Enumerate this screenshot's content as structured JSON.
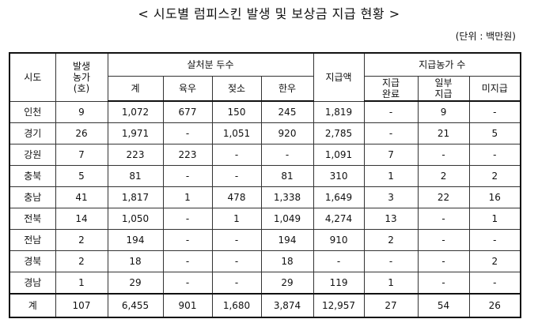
{
  "title": "< 시도별 럼피스킨 발생 및 보상금 지급 현황 >",
  "unit": "(단위 : 백만원)",
  "headers": {
    "region": "시도",
    "farms": "발생\n농가\n(호)",
    "culled_group": "살처분 두수",
    "culled_total": "계",
    "beef": "육우",
    "dairy": "젖소",
    "hanwoo": "한우",
    "paid": "지급액",
    "farms_paid_group": "지급농가 수",
    "complete": "지급\n완료",
    "partial": "일부\n지급",
    "unpaid": "미지급"
  },
  "rows": [
    {
      "region": "인천",
      "farms": "9",
      "total": "1,072",
      "beef": "677",
      "dairy": "150",
      "hanwoo": "245",
      "paid": "1,819",
      "complete": "-",
      "partial": "9",
      "unpaid": "-"
    },
    {
      "region": "경기",
      "farms": "26",
      "total": "1,971",
      "beef": "-",
      "dairy": "1,051",
      "hanwoo": "920",
      "paid": "2,785",
      "complete": "-",
      "partial": "21",
      "unpaid": "5"
    },
    {
      "region": "강원",
      "farms": "7",
      "total": "223",
      "beef": "223",
      "dairy": "-",
      "hanwoo": "-",
      "paid": "1,091",
      "complete": "7",
      "partial": "-",
      "unpaid": "-"
    },
    {
      "region": "충북",
      "farms": "5",
      "total": "81",
      "beef": "-",
      "dairy": "-",
      "hanwoo": "81",
      "paid": "310",
      "complete": "1",
      "partial": "2",
      "unpaid": "2"
    },
    {
      "region": "충남",
      "farms": "41",
      "total": "1,817",
      "beef": "1",
      "dairy": "478",
      "hanwoo": "1,338",
      "paid": "1,649",
      "complete": "3",
      "partial": "22",
      "unpaid": "16"
    },
    {
      "region": "전북",
      "farms": "14",
      "total": "1,050",
      "beef": "-",
      "dairy": "1",
      "hanwoo": "1,049",
      "paid": "4,274",
      "complete": "13",
      "partial": "-",
      "unpaid": "1"
    },
    {
      "region": "전남",
      "farms": "2",
      "total": "194",
      "beef": "-",
      "dairy": "-",
      "hanwoo": "194",
      "paid": "910",
      "complete": "2",
      "partial": "-",
      "unpaid": "-"
    },
    {
      "region": "경북",
      "farms": "2",
      "total": "18",
      "beef": "-",
      "dairy": "-",
      "hanwoo": "18",
      "paid": "-",
      "complete": "-",
      "partial": "-",
      "unpaid": "2"
    },
    {
      "region": "경남",
      "farms": "1",
      "total": "29",
      "beef": "-",
      "dairy": "-",
      "hanwoo": "29",
      "paid": "119",
      "complete": "1",
      "partial": "-",
      "unpaid": "-"
    }
  ],
  "total_row": {
    "region": "계",
    "farms": "107",
    "total": "6,455",
    "beef": "901",
    "dairy": "1,680",
    "hanwoo": "3,874",
    "paid": "12,957",
    "complete": "27",
    "partial": "54",
    "unpaid": "26"
  }
}
